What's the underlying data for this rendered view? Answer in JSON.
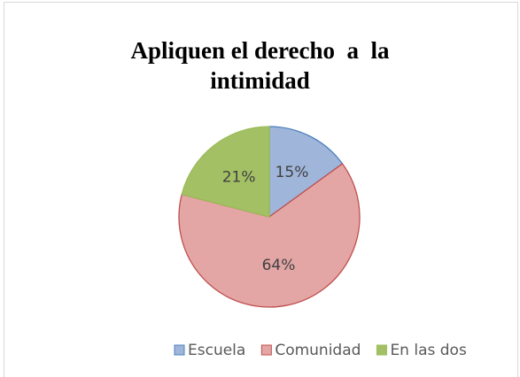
{
  "chart_data": {
    "type": "pie",
    "title": "Apliquen el derecho  a  la\nintimidad",
    "categories": [
      "Escuela",
      "Comunidad",
      "En las dos"
    ],
    "values": [
      15,
      64,
      21
    ],
    "value_labels": [
      "15%",
      "64%",
      "21%"
    ],
    "colors": [
      "#9fb5da",
      "#e3a6a5",
      "#a3c164"
    ],
    "edge_colors": [
      "#4f81bd",
      "#c0504d",
      "#9bbb59"
    ],
    "legend": "bottom"
  }
}
